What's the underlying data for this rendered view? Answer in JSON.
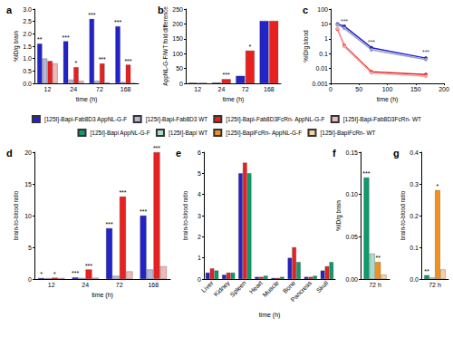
{
  "chart_data": [
    {
      "panel": "a",
      "type": "bar",
      "x_label": "time (h)",
      "y_label": "%ID/g brain",
      "grid": false,
      "categories": [
        12,
        24,
        72,
        168
      ],
      "ylim": [
        0,
        3
      ],
      "yticks": [
        {
          "value": 0,
          "label": "0.0"
        },
        0.5,
        {
          "value": 1,
          "label": "1.0"
        },
        1.5,
        {
          "value": 2,
          "label": "2.0"
        },
        2.5,
        {
          "value": 3,
          "label": "3.0"
        }
      ],
      "series": [
        {
          "name": "[125I]-Bapi-Fab8D3 AppNL-G-F",
          "color": "#2323c8",
          "values": [
            1.6,
            1.7,
            2.6,
            2.3
          ]
        },
        {
          "name": "[125I]-Bapi-Fab8D3 WT",
          "color": "#b4b8d8",
          "values": [
            1.0,
            0.15,
            0.1,
            0.05
          ]
        },
        {
          "name": "[125I]-Bapi-Fab8D3FcRn- AppNL-G-F",
          "color": "#e8201f",
          "values": [
            0.9,
            0.65,
            0.8,
            0.75
          ]
        },
        {
          "name": "[125I]-Bapi-Fab8D3FcRn- WT",
          "color": "#f2b8b8",
          "values": [
            0.8,
            0.1,
            0.03,
            0.01
          ]
        }
      ],
      "annotations": [
        {
          "x": 12,
          "series": "[125I]-Bapi-Fab8D3 AppNL-G-F",
          "text": "**"
        },
        {
          "x": 24,
          "series": "[125I]-Bapi-Fab8D3 AppNL-G-F",
          "text": "***"
        },
        {
          "x": 24,
          "series": "[125I]-Bapi-Fab8D3FcRn- AppNL-G-F",
          "text": "*"
        },
        {
          "x": 72,
          "series": "[125I]-Bapi-Fab8D3 AppNL-G-F",
          "text": "***"
        },
        {
          "x": 72,
          "series": "[125I]-Bapi-Fab8D3FcRn- AppNL-G-F",
          "text": "***"
        },
        {
          "x": 168,
          "series": "[125I]-Bapi-Fab8D3 AppNL-G-F",
          "text": "***"
        },
        {
          "x": 168,
          "series": "[125I]-Bapi-Fab8D3FcRn- AppNL-G-F",
          "text": "***"
        }
      ]
    },
    {
      "panel": "b",
      "type": "bar",
      "x_label": "time (h)",
      "y_label": "AppNL-G-F/WT fold difference",
      "grid": false,
      "categories": [
        12,
        24,
        72,
        168
      ],
      "ylim": [
        0,
        250
      ],
      "yticks": [
        0,
        50,
        100,
        150,
        200,
        250
      ],
      "series": [
        {
          "name": "[125I]-Bapi-Fab8D3 AppNL-G-F",
          "color": "#2323c8",
          "values": [
            1.7,
            2.2,
            25,
            210
          ]
        },
        {
          "name": "[125I]-Bapi-Fab8D3FcRn- AppNL-G-F",
          "color": "#e8201f",
          "values": [
            1.2,
            14,
            110,
            210
          ]
        }
      ],
      "annotations": [
        {
          "x": 24,
          "series": "[125I]-Bapi-Fab8D3FcRn- AppNL-G-F",
          "text": "***"
        },
        {
          "x": 72,
          "series": "[125I]-Bapi-Fab8D3FcRn- AppNL-G-F",
          "text": "*"
        }
      ]
    },
    {
      "panel": "c",
      "type": "line",
      "x_label": "time (h)",
      "y_label": "%ID/g blood",
      "grid": false,
      "log": "y",
      "marker": "circle",
      "x": [
        12,
        24,
        72,
        168
      ],
      "xlim": [
        0,
        200
      ],
      "xticks": [
        0,
        50,
        100,
        150,
        200
      ],
      "ylim": [
        0.001,
        100
      ],
      "yticks": [
        0.001,
        0.01,
        0.1,
        1,
        10,
        100
      ],
      "series": [
        {
          "name": "[125I]-Bapi-Fab8D3 AppNL-G-F",
          "color": "#2323c8",
          "values": [
            10,
            7,
            0.25,
            0.05
          ]
        },
        {
          "name": "[125I]-Bapi-Fab8D3 WT",
          "color": "#9a9ec8",
          "values": [
            9,
            5,
            0.18,
            0.04
          ]
        },
        {
          "name": "[125I]-Bapi-Fab8D3FcRn- AppNL-G-F",
          "color": "#e8201f",
          "values": [
            4.5,
            0.35,
            0.006,
            0.004
          ]
        },
        {
          "name": "[125I]-Bapi-Fab8D3FcRn- WT",
          "color": "#f2a8a8",
          "values": [
            5,
            0.3,
            0.005,
            0.003
          ]
        }
      ],
      "annotations": [
        {
          "x": 24,
          "y": 15,
          "text": "***"
        },
        {
          "x": 72,
          "y": 0.6,
          "text": "***"
        },
        {
          "x": 168,
          "y": 0.12,
          "text": "***"
        }
      ]
    },
    {
      "panel": "d",
      "type": "bar",
      "x_label": "time (h)",
      "y_label": "brain-to-blood ratio",
      "grid": false,
      "categories": [
        12,
        24,
        72,
        168
      ],
      "ylim": [
        0,
        20
      ],
      "yticks": [
        0,
        5,
        10,
        15,
        20
      ],
      "series": [
        {
          "name": "[125I]-Bapi-Fab8D3 AppNL-G-F",
          "color": "#2323c8",
          "values": [
            0.15,
            0.25,
            8,
            10
          ]
        },
        {
          "name": "[125I]-Bapi-Fab8D3 WT",
          "color": "#b4b8d8",
          "values": [
            0.12,
            0.15,
            0.5,
            1.5
          ]
        },
        {
          "name": "[125I]-Bapi-Fab8D3FcRn- AppNL-G-F",
          "color": "#e8201f",
          "values": [
            0.2,
            1.5,
            13,
            20
          ]
        },
        {
          "name": "[125I]-Bapi-Fab8D3FcRn- WT",
          "color": "#f2b8b8",
          "values": [
            0.15,
            0.2,
            1.2,
            2
          ]
        }
      ],
      "annotations": [
        {
          "x": 12,
          "series": "[125I]-Bapi-Fab8D3 AppNL-G-F",
          "text": "*"
        },
        {
          "x": 12,
          "series": "[125I]-Bapi-Fab8D3FcRn- AppNL-G-F",
          "text": "*"
        },
        {
          "x": 24,
          "series": "[125I]-Bapi-Fab8D3 AppNL-G-F",
          "text": "***"
        },
        {
          "x": 24,
          "series": "[125I]-Bapi-Fab8D3FcRn- AppNL-G-F",
          "text": "***"
        },
        {
          "x": 72,
          "series": "[125I]-Bapi-Fab8D3 AppNL-G-F",
          "text": "***"
        },
        {
          "x": 72,
          "series": "[125I]-Bapi-Fab8D3FcRn- AppNL-G-F",
          "text": "***"
        },
        {
          "x": 168,
          "series": "[125I]-Bapi-Fab8D3 AppNL-G-F",
          "text": "***"
        },
        {
          "x": 168,
          "series": "[125I]-Bapi-Fab8D3FcRn- AppNL-G-F",
          "text": "***"
        }
      ]
    },
    {
      "panel": "e",
      "type": "bar",
      "x_label": "time (h)",
      "y_label": "brain-to-blood ratio",
      "grid": false,
      "categories": [
        "Liver",
        "Kidney",
        "Spleen",
        "Heart",
        "Muscle",
        "Bone",
        "Pancreas",
        "Skull"
      ],
      "ylim": [
        0,
        6
      ],
      "yticks": [
        0,
        1,
        2,
        3,
        4,
        5,
        6
      ],
      "series": [
        {
          "name": "[125I]-Bapi-Fab8D3 AppNL-G-F",
          "color": "#2323c8",
          "values": [
            0.3,
            0.2,
            5,
            0.1,
            0.05,
            1,
            0.1,
            0.4
          ]
        },
        {
          "name": "[125I]-Bapi-Fab8D3FcRn- AppNL-G-F",
          "color": "#e8201f",
          "values": [
            0.5,
            0.3,
            5.5,
            0.1,
            0.05,
            1.5,
            0.1,
            0.6
          ]
        },
        {
          "name": "[125I]-Bapi AppNL-G-F",
          "color": "#0e9a6a",
          "values": [
            0.4,
            0.3,
            5,
            0.15,
            0.1,
            0.8,
            0.15,
            0.8
          ]
        }
      ],
      "annotations": []
    },
    {
      "panel": "f",
      "type": "bar",
      "y_label": "%ID/g brain",
      "grid": false,
      "categories": [
        "72 h"
      ],
      "ylim": [
        0,
        0.15
      ],
      "yticks": [
        {
          "value": 0,
          "label": "0.00"
        },
        0.05,
        {
          "value": 0.1,
          "label": "0.10"
        },
        0.15
      ],
      "series": [
        {
          "name": "[125I]-Bapi AppNL-G-F",
          "color": "#0e9a6a",
          "values": [
            0.12
          ]
        },
        {
          "name": "[125I]-Bapi WT",
          "color": "#a8dcc8",
          "values": [
            0.03
          ]
        },
        {
          "name": "[125I]-BapiFcRn- AppNL-G-F",
          "color": "#f0901e",
          "values": [
            0.02
          ]
        },
        {
          "name": "[125I]-BapiFcRn- WT",
          "color": "#f8d0a0",
          "values": [
            0.005
          ]
        }
      ],
      "annotations": [
        {
          "x": "72 h",
          "series": "[125I]-Bapi AppNL-G-F",
          "text": "***"
        },
        {
          "x": "72 h",
          "series": "[125I]-BapiFcRn- AppNL-G-F",
          "text": "**"
        }
      ]
    },
    {
      "panel": "g",
      "type": "bar",
      "y_label": "brain-to-blood ratio",
      "grid": false,
      "categories": [
        "72 h"
      ],
      "ylim": [
        0,
        0.4
      ],
      "yticks": [
        {
          "value": 0,
          "label": "0.0"
        },
        0.1,
        0.2,
        0.3,
        0.4
      ],
      "series": [
        {
          "name": "[125I]-Bapi AppNL-G-F",
          "color": "#0e9a6a",
          "values": [
            0.012
          ]
        },
        {
          "name": "[125I]-Bapi WT",
          "color": "#a8dcc8",
          "values": [
            0.005
          ]
        },
        {
          "name": "[125I]-BapiFcRn- AppNL-G-F",
          "color": "#f0901e",
          "values": [
            0.28
          ]
        },
        {
          "name": "[125I]-BapiFcRn- WT",
          "color": "#f8d0a0",
          "values": [
            0.03
          ]
        }
      ],
      "annotations": [
        {
          "x": "72 h",
          "series": "[125I]-Bapi AppNL-G-F",
          "text": "**"
        },
        {
          "x": "72 h",
          "series": "[125I]-BapiFcRn- AppNL-G-F",
          "text": "*"
        }
      ]
    }
  ]
}
